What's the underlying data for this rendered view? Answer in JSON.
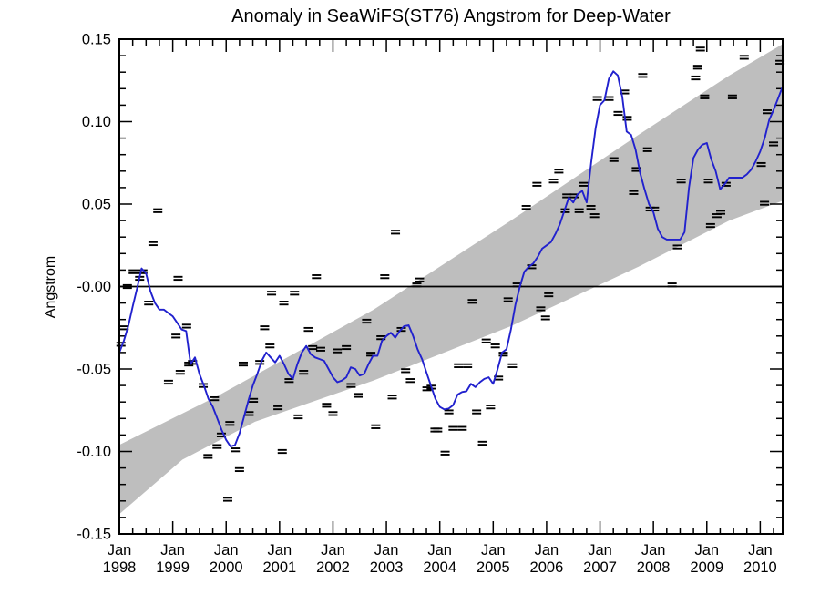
{
  "title": "Anomaly in SeaWiFS(ST76) Angstrom for Deep-Water",
  "y_axis_title": "Angstrom",
  "colors": {
    "background": "#ffffff",
    "axis": "#000000",
    "smoothed_line": "#2121ce",
    "confidence_band": "#bebebe",
    "markers": "#000000",
    "zero_line": "#000000"
  },
  "chart_data": {
    "type": "line",
    "title": "Anomaly in SeaWiFS(ST76) Angstrom for Deep-Water",
    "xlabel": "",
    "ylabel": "Angstrom",
    "x_range": [
      1998.0,
      2010.42
    ],
    "y_range": [
      -0.15,
      0.15
    ],
    "grid": false,
    "legend": "none",
    "zero_line": true,
    "x_major_ticks": [
      1998,
      1999,
      2000,
      2001,
      2002,
      2003,
      2004,
      2005,
      2006,
      2007,
      2008,
      2009,
      2010
    ],
    "x_tick_labels": [
      {
        "line1": "Jan",
        "line2": "1998"
      },
      {
        "line1": "Jan",
        "line2": "1999"
      },
      {
        "line1": "Jan",
        "line2": "2000"
      },
      {
        "line1": "Jan",
        "line2": "2001"
      },
      {
        "line1": "Jan",
        "line2": "2002"
      },
      {
        "line1": "Jan",
        "line2": "2003"
      },
      {
        "line1": "Jan",
        "line2": "2004"
      },
      {
        "line1": "Jan",
        "line2": "2005"
      },
      {
        "line1": "Jan",
        "line2": "2006"
      },
      {
        "line1": "Jan",
        "line2": "2007"
      },
      {
        "line1": "Jan",
        "line2": "2008"
      },
      {
        "line1": "Jan",
        "line2": "2009"
      },
      {
        "line1": "Jan",
        "line2": "2010"
      }
    ],
    "x_minor_step_years": 0.25,
    "y_major_ticks": [
      {
        "value": 0.15,
        "label": "0.15"
      },
      {
        "value": 0.1,
        "label": "0.10"
      },
      {
        "value": 0.05,
        "label": "0.05"
      },
      {
        "value": 0.0,
        "label": "-0.00"
      },
      {
        "value": -0.05,
        "label": "-0.05"
      },
      {
        "value": -0.1,
        "label": "-0.10"
      },
      {
        "value": -0.15,
        "label": "-0.15"
      }
    ],
    "y_minor_step": 0.01,
    "band": {
      "name": "trend-confidence-band",
      "top": [
        [
          1998.0,
          -0.096
        ],
        [
          1999.86,
          -0.066
        ],
        [
          2002.76,
          -0.014
        ],
        [
          2005.33,
          0.04
        ],
        [
          2007.72,
          0.092
        ],
        [
          2009.42,
          0.128
        ],
        [
          2010.42,
          0.147
        ]
      ],
      "bottom": [
        [
          1998.0,
          -0.138
        ],
        [
          1999.18,
          -0.105
        ],
        [
          2000.54,
          -0.082
        ],
        [
          2002.76,
          -0.057
        ],
        [
          2005.33,
          -0.024
        ],
        [
          2007.72,
          0.012
        ],
        [
          2009.42,
          0.04
        ],
        [
          2010.42,
          0.052
        ]
      ]
    },
    "smoothed_series": {
      "name": "smoothed-anomaly",
      "start_year": 1998.0,
      "step_months": 1,
      "values": [
        -0.04,
        -0.033,
        -0.024,
        -0.012,
        -0.001,
        0.011,
        0.008,
        -0.003,
        -0.01,
        -0.014,
        -0.014,
        -0.016,
        -0.018,
        -0.022,
        -0.026,
        -0.027,
        -0.047,
        -0.043,
        -0.053,
        -0.06,
        -0.068,
        -0.073,
        -0.08,
        -0.087,
        -0.093,
        -0.097,
        -0.096,
        -0.089,
        -0.079,
        -0.069,
        -0.06,
        -0.053,
        -0.045,
        -0.04,
        -0.043,
        -0.046,
        -0.042,
        -0.047,
        -0.053,
        -0.056,
        -0.047,
        -0.04,
        -0.036,
        -0.041,
        -0.043,
        -0.044,
        -0.045,
        -0.05,
        -0.055,
        -0.058,
        -0.057,
        -0.055,
        -0.049,
        -0.05,
        -0.054,
        -0.053,
        -0.047,
        -0.042,
        -0.042,
        -0.033,
        -0.03,
        -0.028,
        -0.031,
        -0.027,
        -0.024,
        -0.0235,
        -0.03,
        -0.038,
        -0.044,
        -0.052,
        -0.06,
        -0.068,
        -0.073,
        -0.0745,
        -0.074,
        -0.072,
        -0.0655,
        -0.064,
        -0.0635,
        -0.059,
        -0.061,
        -0.058,
        -0.056,
        -0.055,
        -0.059,
        -0.05,
        -0.04,
        -0.038,
        -0.026,
        -0.011,
        0.0,
        0.009,
        0.012,
        0.014,
        0.018,
        0.023,
        0.025,
        0.027,
        0.032,
        0.038,
        0.046,
        0.054,
        0.051,
        0.056,
        0.058,
        0.051,
        0.075,
        0.096,
        0.11,
        0.113,
        0.126,
        0.1305,
        0.128,
        0.115,
        0.094,
        0.092,
        0.083,
        0.069,
        0.059,
        0.05,
        0.045,
        0.035,
        0.03,
        0.0285,
        0.0285,
        0.0285,
        0.0285,
        0.033,
        0.06,
        0.078,
        0.083,
        0.086,
        0.087,
        0.077,
        0.07,
        0.059,
        0.062,
        0.066,
        0.066,
        0.066,
        0.066,
        0.068,
        0.071,
        0.076,
        0.082,
        0.09,
        0.101,
        0.107,
        0.114,
        0.121
      ]
    },
    "monthly_markers": {
      "name": "monthly-anomaly-markers",
      "points": [
        [
          1998.03,
          -0.035
        ],
        [
          1998.09,
          -0.025
        ],
        [
          1998.15,
          0.0
        ],
        [
          1998.26,
          0.009
        ],
        [
          1998.38,
          0.005
        ],
        [
          1998.44,
          0.009
        ],
        [
          1998.55,
          -0.01
        ],
        [
          1998.63,
          0.026
        ],
        [
          1998.72,
          0.046
        ],
        [
          1998.92,
          -0.058
        ],
        [
          1999.06,
          -0.03
        ],
        [
          1999.1,
          0.005
        ],
        [
          1999.14,
          -0.052
        ],
        [
          1999.26,
          -0.024
        ],
        [
          1999.3,
          -0.047
        ],
        [
          1999.37,
          -0.046
        ],
        [
          1999.57,
          -0.06
        ],
        [
          1999.66,
          -0.103
        ],
        [
          1999.78,
          -0.068
        ],
        [
          1999.83,
          -0.097
        ],
        [
          1999.91,
          -0.09
        ],
        [
          2000.03,
          -0.129
        ],
        [
          2000.07,
          -0.083
        ],
        [
          2000.17,
          -0.099
        ],
        [
          2000.25,
          -0.111
        ],
        [
          2000.32,
          -0.047
        ],
        [
          2000.43,
          -0.077
        ],
        [
          2000.51,
          -0.069
        ],
        [
          2000.63,
          -0.046
        ],
        [
          2000.72,
          -0.025
        ],
        [
          2000.82,
          -0.036
        ],
        [
          2000.85,
          -0.004
        ],
        [
          2000.97,
          -0.0735
        ],
        [
          2001.05,
          -0.1
        ],
        [
          2001.08,
          -0.01
        ],
        [
          2001.18,
          -0.057
        ],
        [
          2001.28,
          -0.004
        ],
        [
          2001.35,
          -0.079
        ],
        [
          2001.45,
          -0.052
        ],
        [
          2001.54,
          -0.026
        ],
        [
          2001.62,
          -0.037
        ],
        [
          2001.69,
          0.006
        ],
        [
          2001.77,
          -0.038
        ],
        [
          2001.88,
          -0.072
        ],
        [
          2002.0,
          -0.077
        ],
        [
          2002.08,
          -0.039
        ],
        [
          2002.25,
          -0.037
        ],
        [
          2002.34,
          -0.06
        ],
        [
          2002.47,
          -0.066
        ],
        [
          2002.63,
          -0.021
        ],
        [
          2002.71,
          -0.041
        ],
        [
          2002.8,
          -0.085
        ],
        [
          2002.9,
          -0.031
        ],
        [
          2002.97,
          0.006
        ],
        [
          2003.11,
          -0.067
        ],
        [
          2003.17,
          0.033
        ],
        [
          2003.28,
          -0.026
        ],
        [
          2003.36,
          -0.051
        ],
        [
          2003.45,
          -0.057
        ],
        [
          2003.57,
          0.001
        ],
        [
          2003.62,
          0.004
        ],
        [
          2003.76,
          -0.062
        ],
        [
          2003.84,
          -0.061
        ],
        [
          2003.91,
          -0.087
        ],
        [
          2003.96,
          -0.087
        ],
        [
          2004.1,
          -0.101
        ],
        [
          2004.17,
          -0.076
        ],
        [
          2004.25,
          -0.086
        ],
        [
          2004.35,
          -0.048
        ],
        [
          2004.42,
          -0.086
        ],
        [
          2004.52,
          -0.048
        ],
        [
          2004.61,
          -0.009
        ],
        [
          2004.69,
          -0.076
        ],
        [
          2004.8,
          -0.095
        ],
        [
          2004.87,
          -0.033
        ],
        [
          2004.95,
          -0.073
        ],
        [
          2005.04,
          -0.036
        ],
        [
          2005.1,
          -0.0555
        ],
        [
          2005.19,
          -0.041
        ],
        [
          2005.28,
          -0.008
        ],
        [
          2005.36,
          -0.048
        ],
        [
          2005.45,
          0.001
        ],
        [
          2005.62,
          0.048
        ],
        [
          2005.72,
          0.012
        ],
        [
          2005.82,
          0.062
        ],
        [
          2005.89,
          -0.0135
        ],
        [
          2005.98,
          -0.019
        ],
        [
          2006.04,
          -0.005
        ],
        [
          2006.13,
          0.064
        ],
        [
          2006.23,
          0.07
        ],
        [
          2006.35,
          0.046
        ],
        [
          2006.38,
          0.055
        ],
        [
          2006.52,
          0.055
        ],
        [
          2006.61,
          0.046
        ],
        [
          2006.69,
          0.062
        ],
        [
          2006.83,
          0.048
        ],
        [
          2006.9,
          0.043
        ],
        [
          2006.95,
          0.114
        ],
        [
          2007.17,
          0.114
        ],
        [
          2007.26,
          0.077
        ],
        [
          2007.34,
          0.105
        ],
        [
          2007.46,
          0.118
        ],
        [
          2007.51,
          0.102
        ],
        [
          2007.63,
          0.057
        ],
        [
          2007.68,
          0.071
        ],
        [
          2007.8,
          0.128
        ],
        [
          2007.89,
          0.083
        ],
        [
          2007.94,
          0.047
        ],
        [
          2008.02,
          0.047
        ],
        [
          2008.35,
          0.001
        ],
        [
          2008.45,
          0.024
        ],
        [
          2008.52,
          0.064
        ],
        [
          2008.79,
          0.1265
        ],
        [
          2008.83,
          0.133
        ],
        [
          2008.88,
          0.144
        ],
        [
          2008.96,
          0.115
        ],
        [
          2009.03,
          0.064
        ],
        [
          2009.07,
          0.037
        ],
        [
          2009.19,
          0.043
        ],
        [
          2009.26,
          0.045
        ],
        [
          2009.36,
          0.062
        ],
        [
          2009.48,
          0.115
        ],
        [
          2009.7,
          0.139
        ],
        [
          2010.02,
          0.074
        ],
        [
          2010.08,
          0.0505
        ],
        [
          2010.13,
          0.106
        ],
        [
          2010.25,
          0.0865
        ],
        [
          2010.37,
          0.136
        ]
      ]
    }
  }
}
